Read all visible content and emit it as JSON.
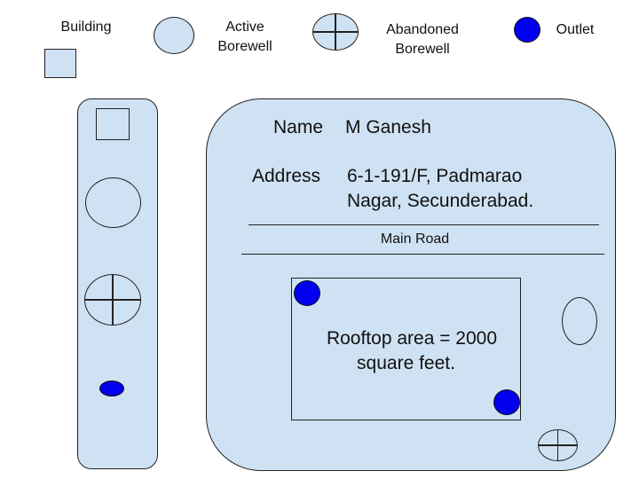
{
  "legend": {
    "building_label": "Building",
    "active_borewell_label": "Active\nBorewell",
    "abandoned_borewell_label": "Abandoned\nBorewell",
    "outlet_label": "Outlet"
  },
  "info": {
    "name_label": "Name",
    "name_value": "M Ganesh",
    "address_label": "Address",
    "address_line1": "6-1-191/F, Padmarao",
    "address_line2": "Nagar, Secunderabad."
  },
  "main_road_label": "Main Road",
  "rooftop": {
    "line1": "Rooftop area = 2000",
    "line2": "square feet."
  },
  "colors": {
    "fill": "#cfe2f3",
    "outlet": "#0000ee",
    "stroke": "#222222"
  },
  "icons": [
    "building-icon",
    "active-borewell-icon",
    "abandoned-borewell-icon",
    "outlet-icon"
  ]
}
